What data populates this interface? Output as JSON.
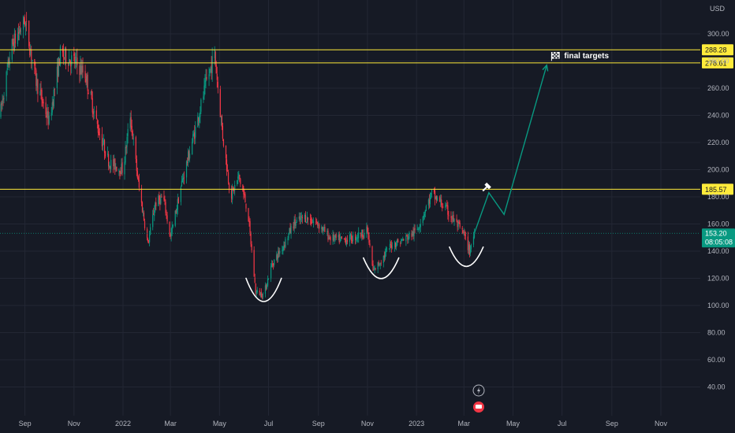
{
  "chart_data": {
    "type": "candlestick",
    "currency_label": "USD",
    "y_ticks": [
      40,
      60,
      80,
      100,
      120,
      140,
      160,
      180,
      200,
      220,
      240,
      260,
      280,
      300
    ],
    "y_tick_labels": [
      "40.00",
      "60.00",
      "80.00",
      "100.00",
      "120.00",
      "140.00",
      "160.00",
      "180.00",
      "200.00",
      "220.00",
      "240.00",
      "260.00",
      "280.00",
      "300.00"
    ],
    "ylim": [
      20,
      320
    ],
    "x_ticks": [
      "2021-09-01",
      "2021-11-01",
      "2022-01-01",
      "2022-03-01",
      "2022-05-01",
      "2022-07-01",
      "2022-09-01",
      "2022-11-01",
      "2023-01-01",
      "2023-03-01",
      "2023-05-01",
      "2023-07-01",
      "2023-09-01",
      "2023-11-01"
    ],
    "x_tick_labels": [
      "Sep",
      "Nov",
      "2022",
      "Mar",
      "May",
      "Jul",
      "Sep",
      "Nov",
      "2023",
      "Mar",
      "May",
      "Jul",
      "Sep",
      "Nov"
    ],
    "xlim": [
      "2021-08-01",
      "2023-12-20"
    ],
    "price_path": [
      [
        "2021-08-01",
        240
      ],
      [
        "2021-08-15",
        290
      ],
      [
        "2021-09-01",
        310
      ],
      [
        "2021-09-15",
        265
      ],
      [
        "2021-10-01",
        235
      ],
      [
        "2021-10-15",
        285
      ],
      [
        "2021-11-01",
        280
      ],
      [
        "2021-11-15",
        270
      ],
      [
        "2021-12-01",
        230
      ],
      [
        "2021-12-15",
        205
      ],
      [
        "2022-01-01",
        200
      ],
      [
        "2022-01-10",
        240
      ],
      [
        "2022-01-20",
        190
      ],
      [
        "2022-02-01",
        145
      ],
      [
        "2022-02-10",
        175
      ],
      [
        "2022-02-20",
        180
      ],
      [
        "2022-03-01",
        150
      ],
      [
        "2022-03-15",
        190
      ],
      [
        "2022-04-01",
        230
      ],
      [
        "2022-04-15",
        265
      ],
      [
        "2022-04-25",
        285
      ],
      [
        "2022-05-05",
        225
      ],
      [
        "2022-05-15",
        180
      ],
      [
        "2022-05-25",
        195
      ],
      [
        "2022-06-05",
        170
      ],
      [
        "2022-06-15",
        110
      ],
      [
        "2022-06-25",
        108
      ],
      [
        "2022-07-05",
        130
      ],
      [
        "2022-07-20",
        145
      ],
      [
        "2022-08-01",
        160
      ],
      [
        "2022-08-15",
        165
      ],
      [
        "2022-09-01",
        160
      ],
      [
        "2022-09-15",
        150
      ],
      [
        "2022-10-01",
        148
      ],
      [
        "2022-10-15",
        150
      ],
      [
        "2022-11-01",
        155
      ],
      [
        "2022-11-08",
        125
      ],
      [
        "2022-11-20",
        135
      ],
      [
        "2022-12-01",
        145
      ],
      [
        "2022-12-15",
        148
      ],
      [
        "2023-01-01",
        155
      ],
      [
        "2023-01-10",
        168
      ],
      [
        "2023-01-20",
        182
      ],
      [
        "2023-02-01",
        175
      ],
      [
        "2023-02-10",
        168
      ],
      [
        "2023-02-20",
        160
      ],
      [
        "2023-03-01",
        152
      ],
      [
        "2023-03-08",
        140
      ],
      [
        "2023-03-14",
        153.2
      ]
    ],
    "levels": [
      {
        "value": 288.28,
        "label": "288.28"
      },
      {
        "value": 278.61,
        "label": "278.61"
      },
      {
        "value": 185.57,
        "label": "185.57"
      }
    ],
    "last_price": {
      "value": 153.2,
      "label": "153.20",
      "countdown": "08:05:08"
    },
    "projection": [
      [
        "2023-03-14",
        153.2
      ],
      [
        "2023-04-01",
        183
      ],
      [
        "2023-04-20",
        167
      ],
      [
        "2023-06-12",
        277
      ]
    ],
    "target_annotation": {
      "date": "2023-06-18",
      "value": 283,
      "text": "final targets"
    },
    "cup_arcs": [
      {
        "center": "2022-06-25",
        "bottom": 102,
        "half_width_days": 22,
        "rise": 18
      },
      {
        "center": "2022-11-18",
        "bottom": 119,
        "half_width_days": 22,
        "rise": 16
      },
      {
        "center": "2023-03-04",
        "bottom": 128,
        "half_width_days": 21,
        "rise": 15
      }
    ],
    "grid": true,
    "colors": {
      "background": "#161a25",
      "grid": "#232734",
      "up": "#089981",
      "down": "#f23645",
      "level": "#ffeb3b",
      "projection": "#089981",
      "price_label": "#089981",
      "arc": "#ffffff"
    }
  }
}
